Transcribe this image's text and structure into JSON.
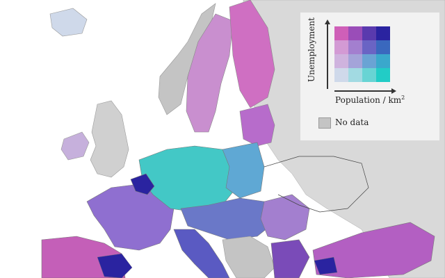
{
  "legend": {
    "y_axis_label": "Unemployment",
    "x_axis_label": "Population / km",
    "x_axis_superscript": "2",
    "no_data_label": "No data",
    "no_data_color": "#c4c4c4",
    "bivariate_colors": [
      [
        "#cf5fb8",
        "#9a4db8",
        "#5a3aae",
        "#2a23a0"
      ],
      [
        "#d39ad4",
        "#a37fcf",
        "#6a64c4",
        "#3a68be"
      ],
      [
        "#cfb3de",
        "#a4a4d9",
        "#6aa3d4",
        "#3aa8cc"
      ],
      [
        "#cfd9ea",
        "#a2dae2",
        "#68d4d4",
        "#22ccc6"
      ]
    ]
  },
  "map": {
    "sea_color": "#ffffff",
    "non_eu_color": "#d9d9d9"
  }
}
